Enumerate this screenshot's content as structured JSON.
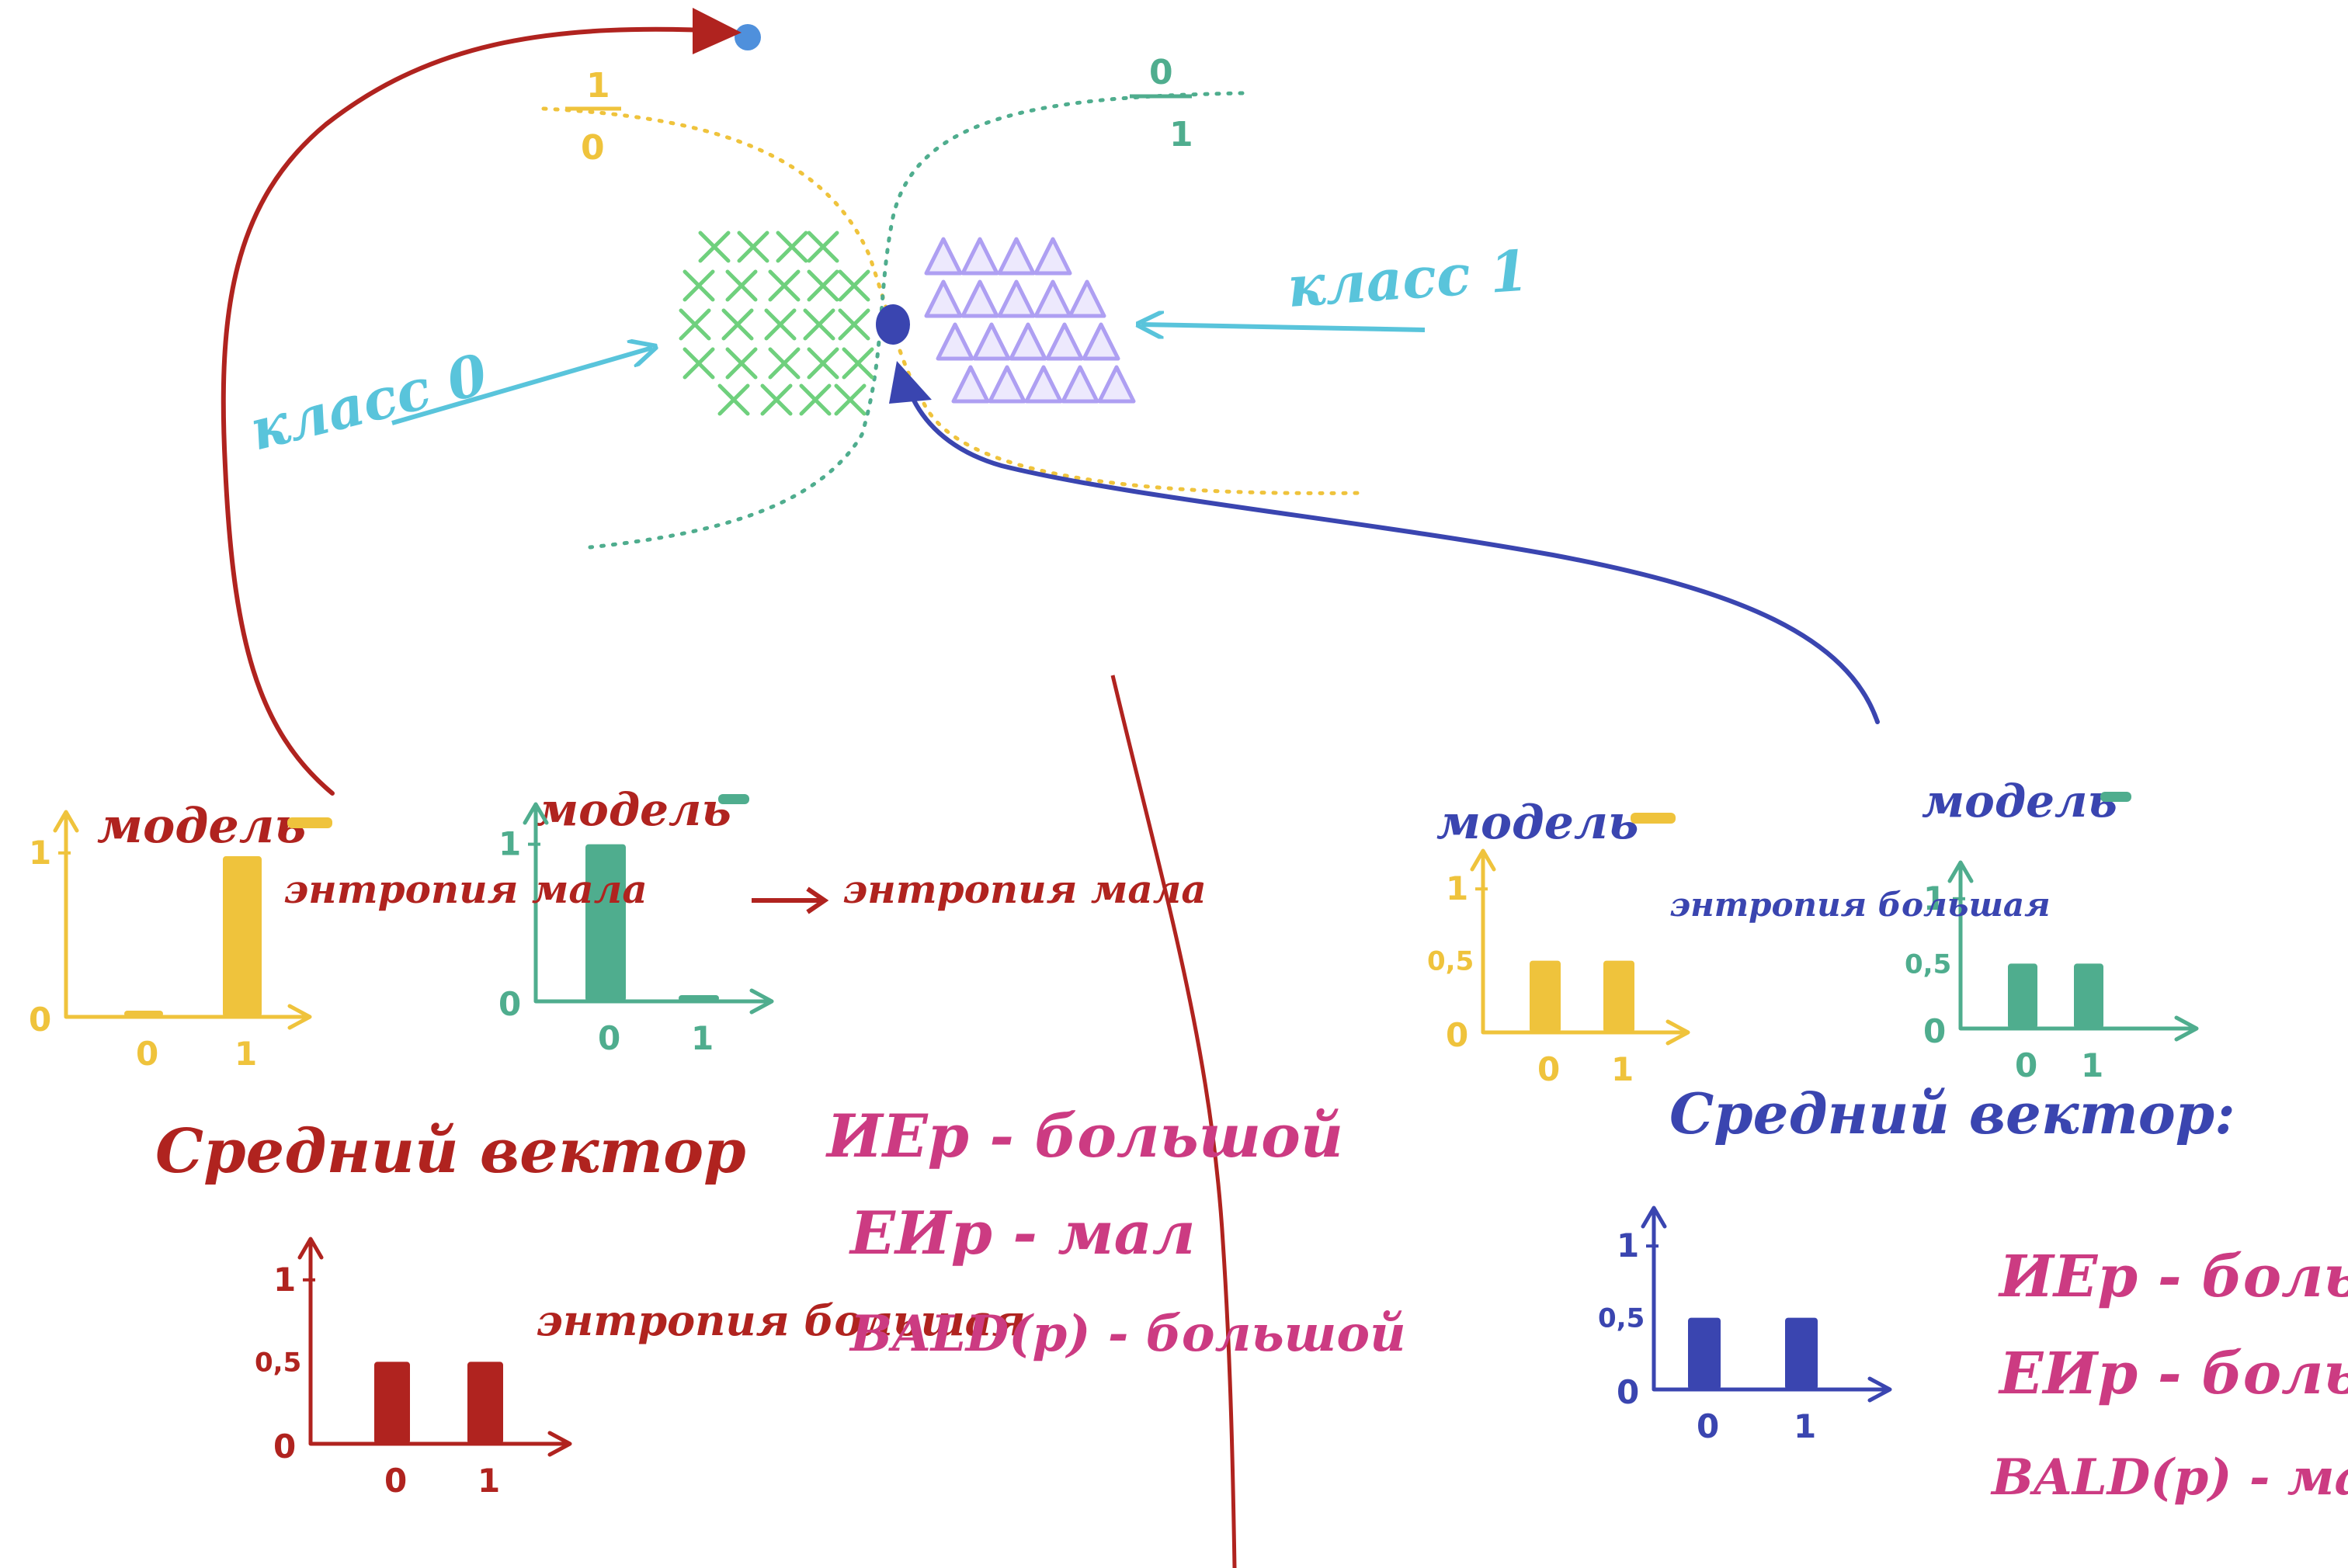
{
  "labels": {
    "class0": "класс 0",
    "class1": "класс 1",
    "boundary_yellow_top": "1",
    "boundary_yellow_bottom": "0",
    "boundary_green_top": "0",
    "boundary_green_bottom": "1"
  },
  "left": {
    "model_label": "модель",
    "entropy_small": "энтропия мала",
    "mean_vector": "Средний вектор",
    "entropy_large": "энтропия большая",
    "metric_ie": "ИЕр - большой",
    "metric_ei": "ЕИр - мал",
    "metric_bald": "BALD(p) - большой",
    "chart_ticks": {
      "zero": "0",
      "one": "1",
      "half": "0,5"
    }
  },
  "right": {
    "model_label": "модель",
    "entropy_large": "энтропия большая",
    "mean_vector": "Средний вектор:",
    "metric_ie": "ИЕр - большой",
    "metric_ei": "ЕИр - большой",
    "metric_bald": "BALD(p) - мал.",
    "chart_ticks": {
      "zero": "0",
      "one": "1",
      "half": "0,5"
    }
  },
  "colors": {
    "red": "#b0231f",
    "yellow": "#efc33c",
    "teal": "#4fad8e",
    "blue": "#3a45b0",
    "cyan": "#59c4db",
    "green_x": "#6fd07d",
    "purple": "#ae9ff2",
    "magenta": "#cc3b82",
    "point_blue": "#4f90dc"
  },
  "chart_data": [
    {
      "type": "bar",
      "name_ref": "left_yellow_model",
      "categories": [
        "0",
        "1"
      ],
      "values": [
        0.02,
        0.98
      ],
      "ylim": [
        0,
        1
      ]
    },
    {
      "type": "bar",
      "name_ref": "left_teal_model",
      "categories": [
        "0",
        "1"
      ],
      "values": [
        1.0,
        0.02
      ],
      "ylim": [
        0,
        1
      ]
    },
    {
      "type": "bar",
      "name_ref": "left_mean_vector",
      "categories": [
        "0",
        "1"
      ],
      "values": [
        0.5,
        0.5
      ],
      "ylim": [
        0,
        1
      ]
    },
    {
      "type": "bar",
      "name_ref": "right_yellow_model",
      "categories": [
        "0",
        "1"
      ],
      "values": [
        0.5,
        0.5
      ],
      "ylim": [
        0,
        1
      ]
    },
    {
      "type": "bar",
      "name_ref": "right_teal_model",
      "categories": [
        "0",
        "1"
      ],
      "values": [
        0.5,
        0.5
      ],
      "ylim": [
        0,
        1
      ]
    },
    {
      "type": "bar",
      "name_ref": "right_mean_vector",
      "categories": [
        "0",
        "1"
      ],
      "values": [
        0.5,
        0.5
      ],
      "ylim": [
        0,
        1
      ]
    }
  ]
}
